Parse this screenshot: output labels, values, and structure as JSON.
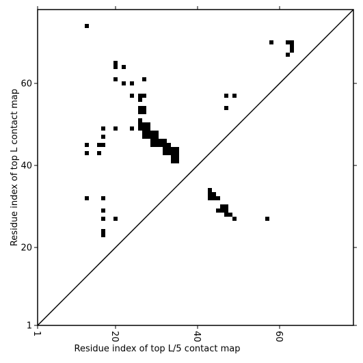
{
  "chart_data": {
    "type": "heatmap",
    "title": "",
    "xlabel": "Residue index of top L/5 contact map",
    "ylabel": "Residue index of top L contact map",
    "xlim": [
      1,
      78
    ],
    "ylim": [
      1,
      78
    ],
    "x_ticks": [
      1,
      20,
      40,
      60
    ],
    "y_ticks": [
      1,
      20,
      40,
      60
    ],
    "x_tick_labels": [
      "1",
      "20",
      "40",
      "60"
    ],
    "y_tick_labels": [
      "1",
      "20",
      "40",
      "60"
    ],
    "diagonal": true,
    "cell_color": "#000000",
    "cells": [
      [
        13,
        74
      ],
      [
        20,
        65
      ],
      [
        20,
        64
      ],
      [
        22,
        64
      ],
      [
        58,
        70
      ],
      [
        62,
        70
      ],
      [
        63,
        70
      ],
      [
        63,
        69
      ],
      [
        63,
        68
      ],
      [
        62,
        67
      ],
      [
        20,
        61
      ],
      [
        22,
        60
      ],
      [
        24,
        60
      ],
      [
        27,
        61
      ],
      [
        24,
        57
      ],
      [
        26,
        57
      ],
      [
        27,
        57
      ],
      [
        26,
        56
      ],
      [
        26,
        54
      ],
      [
        27,
        54
      ],
      [
        26,
        53
      ],
      [
        27,
        53
      ],
      [
        47,
        57
      ],
      [
        49,
        57
      ],
      [
        47,
        54
      ],
      [
        26,
        51
      ],
      [
        26,
        50
      ],
      [
        27,
        50
      ],
      [
        28,
        50
      ],
      [
        26,
        49
      ],
      [
        27,
        49
      ],
      [
        28,
        49
      ],
      [
        29,
        48
      ],
      [
        30,
        48
      ],
      [
        27,
        48
      ],
      [
        28,
        48
      ],
      [
        27,
        47
      ],
      [
        28,
        47
      ],
      [
        29,
        47
      ],
      [
        30,
        47
      ],
      [
        29,
        46
      ],
      [
        30,
        46
      ],
      [
        31,
        46
      ],
      [
        32,
        46
      ],
      [
        29,
        45
      ],
      [
        30,
        45
      ],
      [
        31,
        45
      ],
      [
        32,
        45
      ],
      [
        33,
        45
      ],
      [
        32,
        44
      ],
      [
        33,
        44
      ],
      [
        34,
        44
      ],
      [
        35,
        44
      ],
      [
        32,
        43
      ],
      [
        33,
        43
      ],
      [
        34,
        43
      ],
      [
        35,
        43
      ],
      [
        34,
        42
      ],
      [
        35,
        42
      ],
      [
        34,
        41
      ],
      [
        35,
        41
      ],
      [
        17,
        49
      ],
      [
        20,
        49
      ],
      [
        24,
        49
      ],
      [
        17,
        47
      ],
      [
        13,
        45
      ],
      [
        16,
        45
      ],
      [
        17,
        45
      ],
      [
        13,
        43
      ],
      [
        16,
        43
      ],
      [
        43,
        34
      ],
      [
        43,
        33
      ],
      [
        44,
        33
      ],
      [
        43,
        32
      ],
      [
        44,
        32
      ],
      [
        45,
        32
      ],
      [
        46,
        30
      ],
      [
        47,
        30
      ],
      [
        46,
        29
      ],
      [
        47,
        29
      ],
      [
        45,
        29
      ],
      [
        47,
        28
      ],
      [
        48,
        28
      ],
      [
        49,
        27
      ],
      [
        57,
        27
      ],
      [
        13,
        32
      ],
      [
        17,
        32
      ],
      [
        17,
        29
      ],
      [
        17,
        27
      ],
      [
        20,
        27
      ],
      [
        17,
        24
      ],
      [
        17,
        23
      ]
    ]
  }
}
